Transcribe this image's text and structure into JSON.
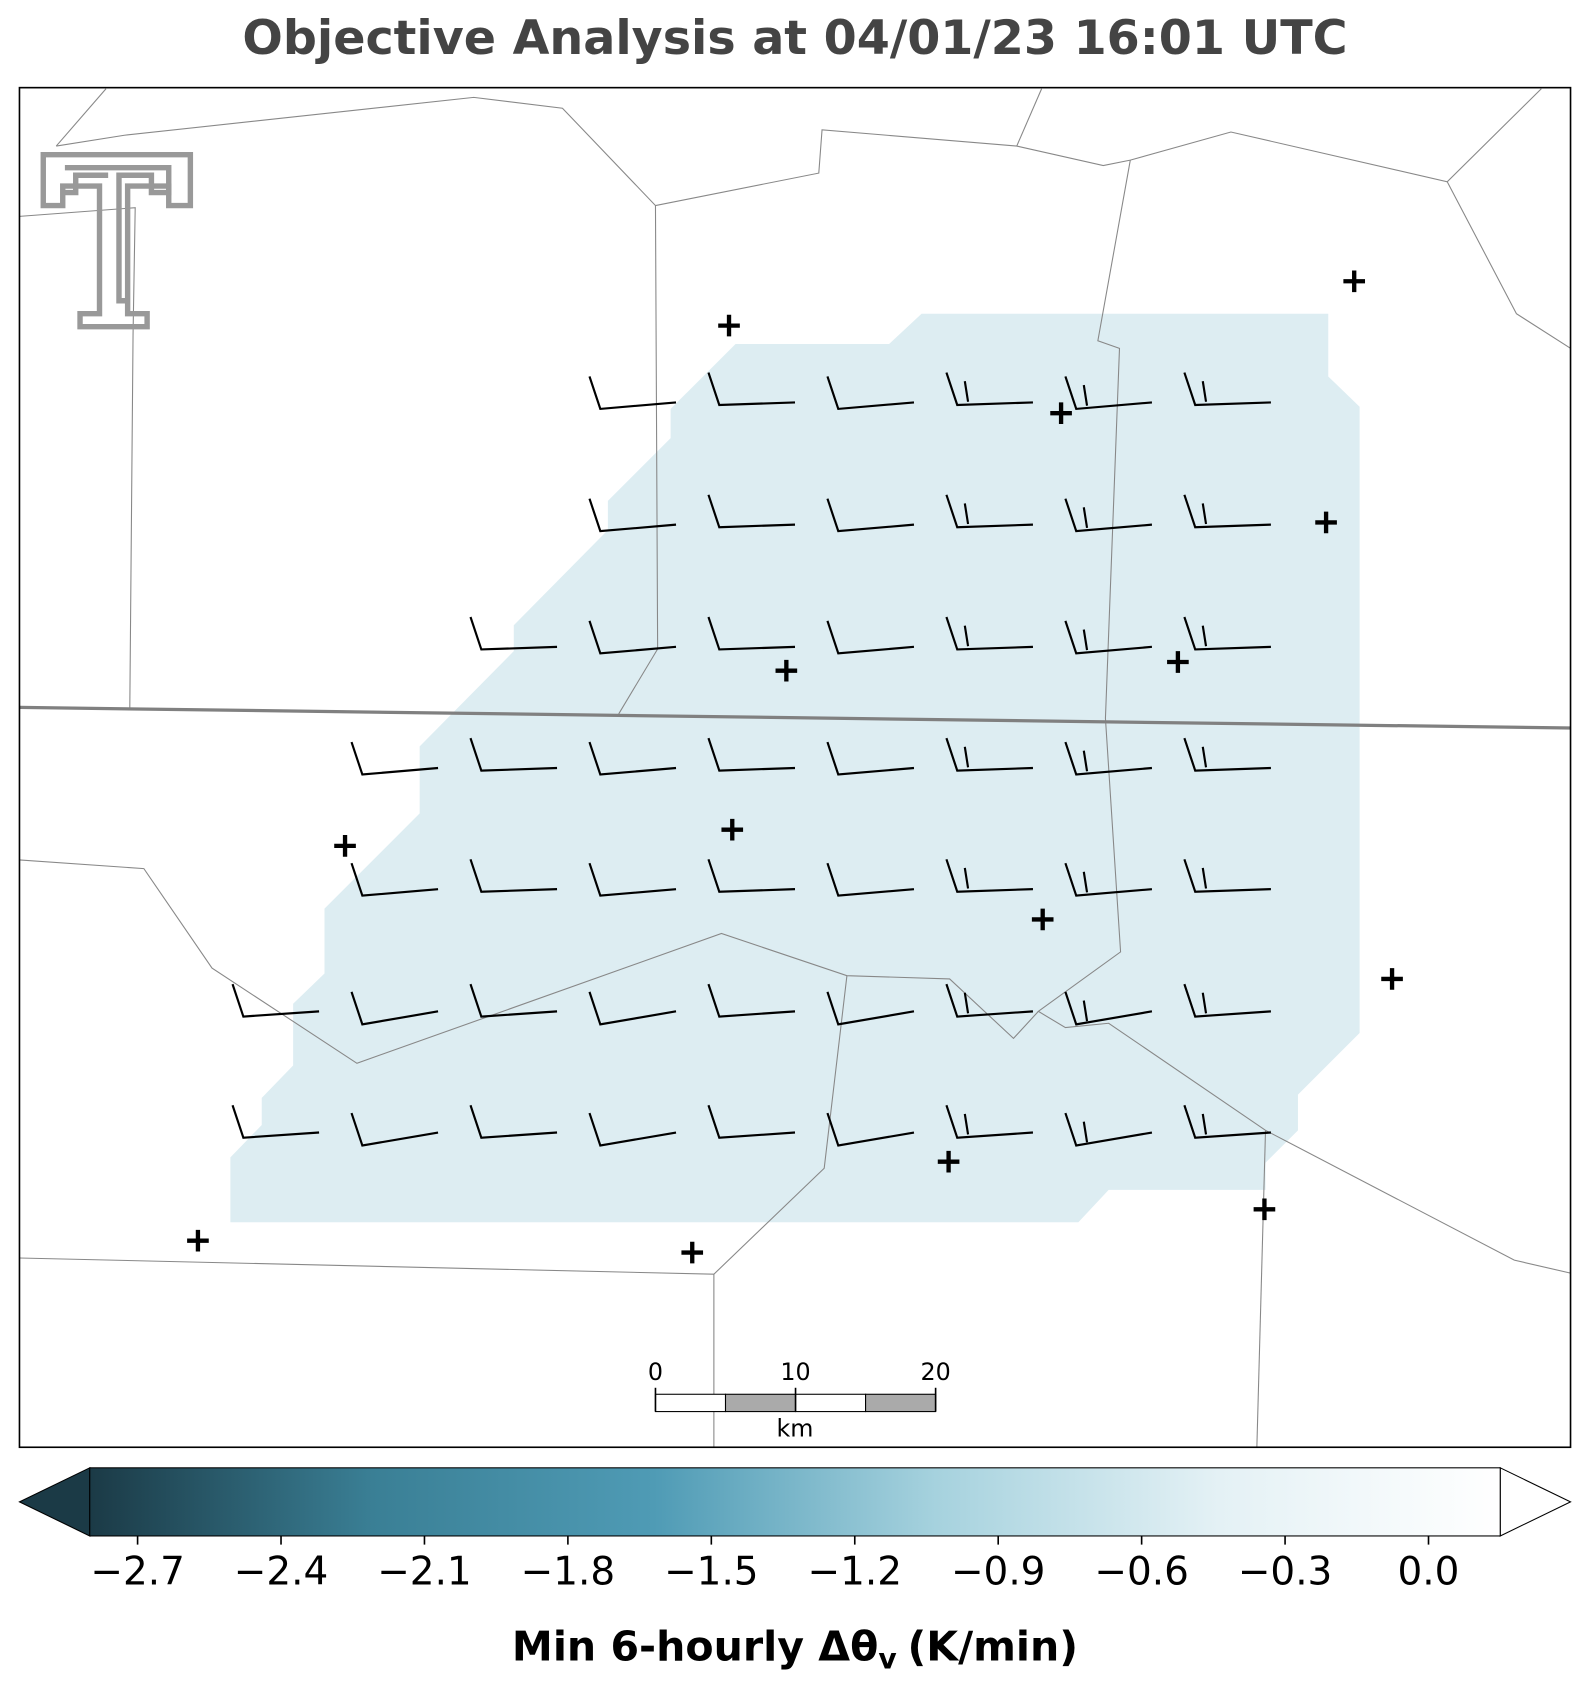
{
  "title": "Objective Analysis at 04/01/23 16:01 UTC",
  "colorbar": {
    "lim": [
      -2.8,
      0.15
    ],
    "colors": [
      "#1b3a46",
      "#3a7f95",
      "#4f9bb5",
      "#a6d2de",
      "#e4f1f5",
      "#ffffff"
    ],
    "ticks": [
      {
        "value": -2.7,
        "label": "−2.7"
      },
      {
        "value": -2.4,
        "label": "−2.4"
      },
      {
        "value": -2.1,
        "label": "−2.1"
      },
      {
        "value": -1.8,
        "label": "−1.8"
      },
      {
        "value": -1.5,
        "label": "−1.5"
      },
      {
        "value": -1.2,
        "label": "−1.2"
      },
      {
        "value": -0.9,
        "label": "−0.9"
      },
      {
        "value": -0.6,
        "label": "−0.6"
      },
      {
        "value": -0.3,
        "label": "−0.3"
      },
      {
        "value": 0.0,
        "label": "0.0"
      }
    ],
    "label": {
      "main": "Min 6-hourly Δθ",
      "subscript": "v",
      "units": "(K/min)"
    }
  },
  "scale_bar": {
    "ticks": [
      0,
      10,
      20
    ],
    "unit": "km"
  }
}
